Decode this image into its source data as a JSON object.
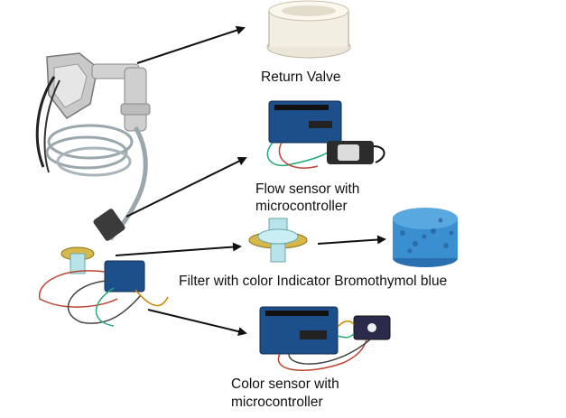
{
  "labels": {
    "return_valve": "Return Valve",
    "flow_sensor_line1": "Flow sensor with",
    "flow_sensor_line2": "microcontroller",
    "filter": "Filter with color Indicator Bromothymol blue",
    "color_sensor_line1": "Color sensor with",
    "color_sensor_line2": "microcontroller"
  },
  "colors": {
    "arrow": "#111111",
    "board": "#1d4f8a",
    "foam": "#3a8fd0",
    "filter_body": "#b9e3ea",
    "filter_ring": "#d8b84a",
    "tube": "#9aa7ad"
  },
  "icons": {
    "return_valve": "white-cylindrical-valve",
    "flow_sensor": "arduino-board-with-flow-meter",
    "filter": "transparent-filter-housing",
    "foam": "blue-foam-sponge",
    "color_sensor": "arduino-board-with-color-sensor",
    "device": "mask-tubing-assembly"
  }
}
